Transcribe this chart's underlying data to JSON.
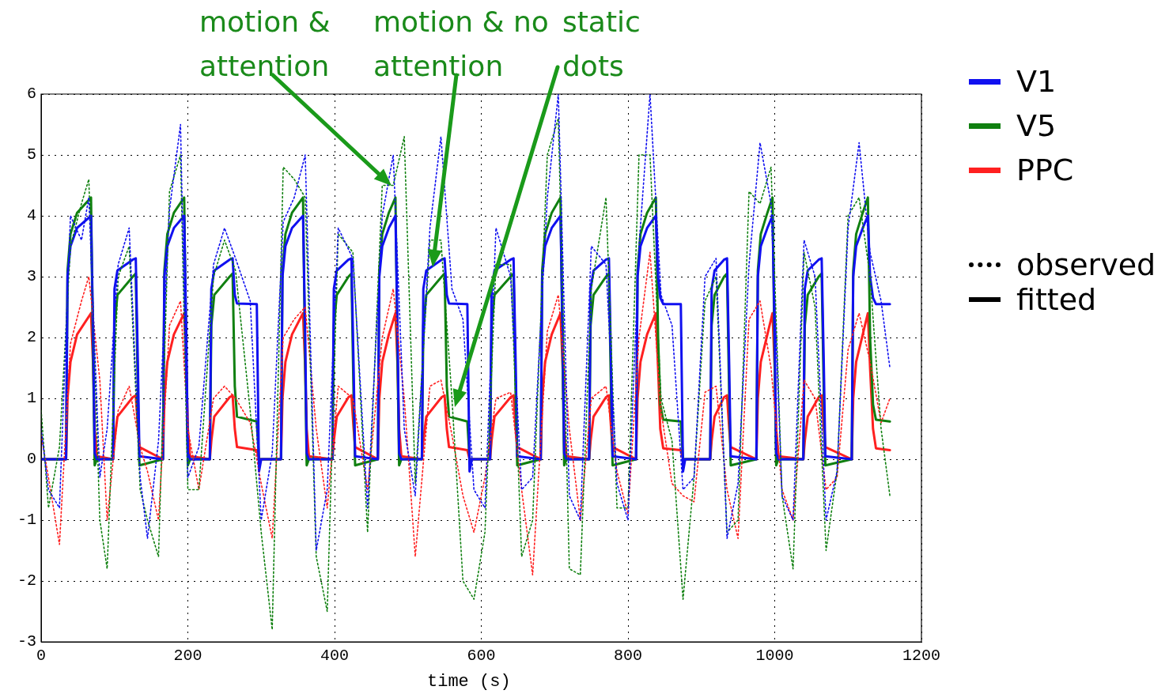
{
  "chart_data": {
    "type": "line",
    "xlabel": "time (s)",
    "xlim": [
      0,
      1200
    ],
    "xticks": [
      0,
      200,
      400,
      600,
      800,
      1000,
      1200
    ],
    "ylim": [
      -3,
      6
    ],
    "yticks": [
      -3,
      -2,
      -1,
      0,
      1,
      2,
      3,
      4,
      5,
      6
    ],
    "grid": true,
    "legend": "right",
    "marker": "none",
    "annotations": [
      "motion & attention",
      "motion & no attention",
      "static dots",
      "observed",
      "fitted"
    ],
    "series": [
      {
        "color": "#1010f0",
        "line_style": "dotted",
        "x": [
          0,
          10,
          25,
          40,
          55,
          65,
          80,
          90,
          105,
          120,
          135,
          145,
          160,
          175,
          190,
          200,
          215,
          235,
          250,
          265,
          285,
          300,
          315,
          330,
          345,
          360,
          375,
          390,
          405,
          425,
          445,
          465,
          480,
          495,
          510,
          530,
          545,
          560,
          575,
          590,
          605,
          620,
          640,
          655,
          670,
          690,
          705,
          720,
          735,
          750,
          770,
          785,
          800,
          815,
          830,
          845,
          860,
          875,
          890,
          905,
          920,
          935,
          950,
          965,
          980,
          995,
          1010,
          1025,
          1040,
          1055,
          1070,
          1085,
          1100,
          1115,
          1130,
          1145,
          1157
        ],
        "values": [
          0.5,
          -0.5,
          -0.8,
          4.0,
          3.6,
          4.3,
          -0.3,
          0.5,
          3.2,
          3.8,
          -0.3,
          -1.3,
          0.3,
          4.1,
          5.5,
          -0.3,
          0.2,
          3.2,
          3.8,
          3.3,
          2.6,
          -1.0,
          0.1,
          3.9,
          4.3,
          5.0,
          -1.5,
          -0.5,
          3.8,
          3.3,
          -0.8,
          4.0,
          5.0,
          0.5,
          -0.6,
          3.8,
          5.3,
          2.8,
          2.3,
          -0.5,
          -0.8,
          3.8,
          3.0,
          -0.5,
          -0.3,
          4.3,
          6.0,
          -0.6,
          -1.0,
          3.5,
          3.2,
          -0.4,
          -1.0,
          3.5,
          6.0,
          2.7,
          2.2,
          -0.5,
          -0.3,
          3.0,
          3.3,
          -1.3,
          -0.4,
          3.2,
          5.2,
          4.2,
          -0.6,
          -1.0,
          3.6,
          3.0,
          -1.0,
          -0.2,
          3.8,
          5.2,
          3.4,
          2.6,
          1.5
        ]
      },
      {
        "color": "#108010",
        "line_style": "dotted",
        "x": [
          0,
          10,
          25,
          40,
          55,
          65,
          80,
          90,
          105,
          120,
          135,
          145,
          160,
          175,
          190,
          200,
          215,
          235,
          250,
          265,
          285,
          300,
          315,
          330,
          345,
          360,
          375,
          390,
          405,
          425,
          445,
          465,
          480,
          495,
          510,
          530,
          545,
          560,
          575,
          590,
          605,
          620,
          640,
          655,
          670,
          690,
          705,
          720,
          735,
          750,
          770,
          785,
          800,
          815,
          830,
          845,
          860,
          875,
          890,
          905,
          920,
          935,
          950,
          965,
          980,
          995,
          1010,
          1025,
          1040,
          1055,
          1070,
          1085,
          1100,
          1115,
          1130,
          1145,
          1157
        ],
        "values": [
          0.8,
          -0.8,
          0.2,
          3.5,
          4.2,
          4.6,
          -1.0,
          -1.8,
          3.0,
          3.5,
          -0.5,
          -1.0,
          -1.6,
          4.4,
          5.0,
          -0.5,
          -0.5,
          3.0,
          3.6,
          3.1,
          0.8,
          -1.2,
          -2.8,
          4.8,
          4.6,
          4.3,
          -1.6,
          -2.5,
          3.7,
          3.4,
          -1.2,
          4.5,
          4.5,
          5.3,
          -0.4,
          3.6,
          3.6,
          1.0,
          -2.0,
          -2.3,
          -1.2,
          3.2,
          3.2,
          -1.6,
          -1.0,
          5.0,
          5.6,
          -1.8,
          -1.9,
          2.8,
          4.3,
          -0.8,
          -0.8,
          5.0,
          5.0,
          1.0,
          0.3,
          -2.3,
          -0.3,
          2.6,
          3.0,
          -1.2,
          -1.0,
          4.4,
          4.2,
          4.8,
          -0.6,
          -1.8,
          3.4,
          2.5,
          -1.5,
          -0.2,
          4.0,
          4.3,
          3.0,
          0.5,
          -0.6
        ]
      },
      {
        "color": "#ff2020",
        "line_style": "dotted",
        "x": [
          0,
          10,
          25,
          40,
          55,
          65,
          80,
          90,
          105,
          120,
          135,
          145,
          160,
          175,
          190,
          200,
          215,
          235,
          250,
          265,
          285,
          300,
          315,
          330,
          345,
          360,
          375,
          390,
          405,
          425,
          445,
          465,
          480,
          495,
          510,
          530,
          545,
          560,
          575,
          590,
          605,
          620,
          640,
          655,
          670,
          690,
          705,
          720,
          735,
          750,
          770,
          785,
          800,
          815,
          830,
          845,
          860,
          875,
          890,
          905,
          920,
          935,
          950,
          965,
          980,
          995,
          1010,
          1025,
          1040,
          1055,
          1070,
          1085,
          1100,
          1115,
          1130,
          1145,
          1157
        ],
        "values": [
          0.4,
          -0.3,
          -1.4,
          1.9,
          2.6,
          3.0,
          1.3,
          -1.0,
          0.8,
          1.2,
          0.2,
          -0.2,
          -1.0,
          2.2,
          2.6,
          0.5,
          -0.5,
          1.0,
          1.2,
          1.0,
          0.6,
          -0.4,
          -1.3,
          2.0,
          2.3,
          2.5,
          0.5,
          -0.8,
          1.2,
          1.0,
          -0.5,
          2.0,
          2.8,
          1.0,
          -1.6,
          1.2,
          1.3,
          0.4,
          -0.6,
          -1.2,
          -0.3,
          1.0,
          1.1,
          -0.5,
          -1.9,
          2.1,
          2.7,
          0.5,
          -1.0,
          1.0,
          1.2,
          -0.2,
          -0.9,
          2.0,
          3.4,
          0.8,
          -0.4,
          -0.6,
          -0.7,
          1.1,
          1.2,
          -0.5,
          -1.3,
          2.3,
          2.6,
          1.5,
          -0.5,
          -1.0,
          1.3,
          1.0,
          -0.5,
          -0.3,
          1.8,
          2.4,
          1.6,
          0.6,
          1.0
        ]
      },
      {
        "name": "V1",
        "color": "#1010f0",
        "line_style": "solid",
        "x": [
          0,
          34,
          36,
          40,
          49,
          68,
          71,
          73,
          76,
          98,
          100,
          104,
          125,
          129,
          132,
          134,
          166,
          168,
          172,
          181,
          195,
          198,
          200,
          203,
          230,
          232,
          236,
          257,
          261,
          264,
          267,
          294,
          297,
          300,
          327,
          329,
          333,
          342,
          357,
          360,
          362,
          365,
          397,
          399,
          403,
          419,
          423,
          426,
          428,
          459,
          461,
          465,
          474,
          483,
          486,
          488,
          491,
          519,
          521,
          525,
          546,
          550,
          553,
          556,
          581,
          584,
          587,
          612,
          614,
          618,
          640,
          644,
          647,
          649,
          681,
          683,
          687,
          696,
          708,
          711,
          713,
          716,
          747,
          749,
          753,
          770,
          774,
          777,
          779,
          811,
          813,
          817,
          826,
          838,
          841,
          844,
          848,
          872,
          875,
          878,
          912,
          914,
          918,
          931,
          935,
          938,
          940,
          975,
          977,
          981,
          990,
          997,
          1000,
          1002,
          1005,
          1039,
          1041,
          1045,
          1060,
          1064,
          1067,
          1069,
          1105,
          1107,
          1111,
          1120,
          1127,
          1130,
          1134,
          1138,
          1157
        ],
        "values": [
          0,
          0,
          3.0,
          3.5,
          3.8,
          4.0,
          2.0,
          0.1,
          0,
          0,
          2.8,
          3.1,
          3.28,
          3.3,
          1.5,
          0.05,
          0,
          3.0,
          3.5,
          3.8,
          4.0,
          2.0,
          0.1,
          0,
          0,
          2.8,
          3.1,
          3.28,
          3.3,
          2.7,
          2.56,
          2.55,
          -0.2,
          0,
          0,
          3.0,
          3.5,
          3.8,
          4.0,
          2.0,
          0.1,
          0,
          0,
          2.8,
          3.1,
          3.28,
          3.3,
          1.5,
          0.05,
          0,
          3.0,
          3.5,
          3.8,
          4.0,
          2.0,
          0.1,
          0,
          0,
          2.8,
          3.1,
          3.28,
          3.3,
          2.7,
          2.56,
          2.55,
          -0.2,
          0,
          0,
          2.8,
          3.1,
          3.28,
          3.3,
          1.5,
          0.05,
          0,
          3.0,
          3.5,
          3.8,
          4.0,
          2.0,
          0.1,
          0,
          0,
          2.8,
          3.1,
          3.28,
          3.3,
          1.5,
          0.05,
          0,
          3.0,
          3.5,
          3.8,
          4.0,
          3.0,
          2.65,
          2.55,
          2.55,
          -0.2,
          0,
          0,
          2.8,
          3.1,
          3.28,
          3.3,
          1.5,
          0.05,
          0,
          3.0,
          3.5,
          3.8,
          4.0,
          2.0,
          0.1,
          0,
          0,
          2.8,
          3.1,
          3.28,
          3.3,
          1.5,
          0.05,
          0,
          3.0,
          3.5,
          3.8,
          4.0,
          3.0,
          2.65,
          2.55,
          2.55
        ]
      },
      {
        "name": "V5",
        "color": "#108010",
        "line_style": "solid",
        "x": [
          0,
          34,
          36,
          40,
          49,
          68,
          71,
          73,
          76,
          98,
          100,
          104,
          125,
          129,
          132,
          134,
          166,
          168,
          172,
          181,
          195,
          198,
          200,
          203,
          230,
          232,
          236,
          257,
          261,
          264,
          267,
          294,
          297,
          300,
          327,
          329,
          333,
          342,
          357,
          360,
          362,
          365,
          397,
          399,
          403,
          419,
          423,
          426,
          428,
          459,
          461,
          465,
          474,
          483,
          486,
          488,
          491,
          519,
          521,
          525,
          546,
          550,
          553,
          556,
          581,
          584,
          587,
          612,
          614,
          618,
          640,
          644,
          647,
          649,
          681,
          683,
          687,
          696,
          708,
          711,
          713,
          716,
          747,
          749,
          753,
          770,
          774,
          777,
          779,
          811,
          813,
          817,
          826,
          838,
          841,
          844,
          848,
          872,
          875,
          878,
          912,
          914,
          918,
          931,
          935,
          938,
          940,
          975,
          977,
          981,
          990,
          997,
          1000,
          1002,
          1005,
          1039,
          1041,
          1045,
          1060,
          1064,
          1067,
          1069,
          1105,
          1107,
          1111,
          1120,
          1127,
          1130,
          1134,
          1138,
          1157
        ],
        "values": [
          0,
          0,
          3.1,
          3.7,
          4.05,
          4.3,
          1.5,
          -0.1,
          0,
          0,
          2.2,
          2.7,
          3.0,
          3.05,
          1.0,
          -0.1,
          0,
          3.1,
          3.7,
          4.05,
          4.3,
          1.5,
          -0.1,
          0,
          0,
          2.2,
          2.7,
          3.0,
          3.05,
          1.2,
          0.7,
          0.62,
          0,
          0,
          0,
          3.1,
          3.7,
          4.05,
          4.3,
          1.5,
          -0.1,
          0,
          0,
          2.2,
          2.7,
          3.0,
          3.05,
          1.0,
          -0.1,
          0,
          3.1,
          3.7,
          4.05,
          4.3,
          1.5,
          -0.1,
          0,
          0,
          2.2,
          2.7,
          3.0,
          3.05,
          1.2,
          0.7,
          0.62,
          0,
          0,
          0,
          2.2,
          2.7,
          3.0,
          3.05,
          1.0,
          -0.1,
          0,
          3.1,
          3.7,
          4.05,
          4.3,
          1.5,
          -0.1,
          0,
          0,
          2.2,
          2.7,
          3.0,
          3.05,
          1.0,
          -0.1,
          0,
          3.1,
          3.7,
          4.05,
          4.3,
          2.0,
          0.9,
          0.65,
          0.62,
          0,
          0,
          0,
          2.2,
          2.7,
          3.0,
          3.05,
          1.0,
          -0.1,
          0,
          3.1,
          3.7,
          4.05,
          4.3,
          1.5,
          -0.1,
          0,
          0,
          2.2,
          2.7,
          3.0,
          3.05,
          1.0,
          -0.1,
          0,
          3.1,
          3.7,
          4.05,
          4.3,
          2.0,
          0.9,
          0.65,
          0.62
        ]
      },
      {
        "name": "PPC",
        "color": "#ff2020",
        "line_style": "solid",
        "x": [
          0,
          34,
          36,
          40,
          49,
          68,
          71,
          73,
          76,
          98,
          100,
          104,
          125,
          129,
          132,
          134,
          166,
          168,
          172,
          181,
          195,
          198,
          200,
          203,
          230,
          232,
          236,
          257,
          261,
          264,
          267,
          294,
          297,
          300,
          327,
          329,
          333,
          342,
          357,
          360,
          362,
          365,
          397,
          399,
          403,
          419,
          423,
          426,
          428,
          459,
          461,
          465,
          474,
          483,
          486,
          488,
          491,
          519,
          521,
          525,
          546,
          550,
          553,
          556,
          581,
          584,
          587,
          612,
          614,
          618,
          640,
          644,
          647,
          649,
          681,
          683,
          687,
          696,
          708,
          711,
          713,
          716,
          747,
          749,
          753,
          770,
          774,
          777,
          779,
          811,
          813,
          817,
          826,
          838,
          841,
          844,
          848,
          872,
          875,
          878,
          912,
          914,
          918,
          931,
          935,
          938,
          940,
          975,
          977,
          981,
          990,
          997,
          1000,
          1002,
          1005,
          1039,
          1041,
          1045,
          1060,
          1064,
          1067,
          1069,
          1105,
          1107,
          1111,
          1120,
          1127,
          1130,
          1134,
          1138,
          1157
        ],
        "values": [
          0,
          0,
          1.0,
          1.6,
          2.05,
          2.4,
          1.5,
          0.5,
          0.05,
          0,
          0.3,
          0.7,
          1.02,
          1.05,
          0.5,
          0.2,
          0,
          1.0,
          1.6,
          2.05,
          2.4,
          1.5,
          0.5,
          0.05,
          0,
          0.3,
          0.7,
          1.02,
          1.05,
          0.5,
          0.2,
          0.15,
          0,
          0,
          0,
          1.0,
          1.6,
          2.05,
          2.4,
          1.5,
          0.5,
          0.05,
          0,
          0.3,
          0.7,
          1.02,
          1.05,
          0.5,
          0.2,
          0,
          1.0,
          1.6,
          2.05,
          2.4,
          1.5,
          0.5,
          0.05,
          0,
          0.3,
          0.7,
          1.02,
          1.05,
          0.5,
          0.2,
          0.15,
          0,
          0,
          0,
          0.3,
          0.7,
          1.02,
          1.05,
          0.5,
          0.2,
          0,
          1.0,
          1.6,
          2.05,
          2.4,
          1.5,
          0.5,
          0.05,
          0,
          0.3,
          0.7,
          1.02,
          1.05,
          0.5,
          0.2,
          0,
          1.0,
          1.6,
          2.05,
          2.4,
          1.5,
          0.5,
          0.18,
          0.15,
          0,
          0,
          0,
          0.3,
          0.7,
          1.02,
          1.05,
          0.5,
          0.2,
          0,
          1.0,
          1.6,
          2.05,
          2.4,
          1.5,
          0.5,
          0.05,
          0,
          0.3,
          0.7,
          1.02,
          1.05,
          0.5,
          0.2,
          0,
          1.0,
          1.6,
          2.05,
          2.4,
          1.5,
          0.5,
          0.18,
          0.15
        ]
      }
    ]
  }
}
